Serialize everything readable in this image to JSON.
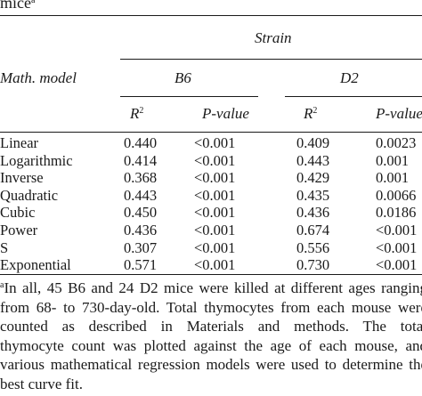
{
  "caption": {
    "text": "mice",
    "marker": "a"
  },
  "header": {
    "group_label": "Strain",
    "model_label": "Math. model",
    "strains": [
      "B6",
      "D2"
    ],
    "r2_label": "R",
    "r2_exponent": "2",
    "p_label": "P-value"
  },
  "rows": [
    {
      "model": "Linear",
      "b6_r2": "0.440",
      "b6_p": "<0.001",
      "d2_r2": "0.409",
      "d2_p": "0.0023"
    },
    {
      "model": "Logarithmic",
      "b6_r2": "0.414",
      "b6_p": "<0.001",
      "d2_r2": "0.443",
      "d2_p": "0.001"
    },
    {
      "model": "Inverse",
      "b6_r2": "0.368",
      "b6_p": "<0.001",
      "d2_r2": "0.429",
      "d2_p": "0.001"
    },
    {
      "model": "Quadratic",
      "b6_r2": "0.443",
      "b6_p": "<0.001",
      "d2_r2": "0.435",
      "d2_p": "0.0066"
    },
    {
      "model": "Cubic",
      "b6_r2": "0.450",
      "b6_p": "<0.001",
      "d2_r2": "0.436",
      "d2_p": "0.0186"
    },
    {
      "model": "Power",
      "b6_r2": "0.436",
      "b6_p": "<0.001",
      "d2_r2": "0.674",
      "d2_p": "<0.001"
    },
    {
      "model": "S",
      "b6_r2": "0.307",
      "b6_p": "<0.001",
      "d2_r2": "0.556",
      "d2_p": "<0.001"
    },
    {
      "model": "Exponential",
      "b6_r2": "0.571",
      "b6_p": "<0.001",
      "d2_r2": "0.730",
      "d2_p": "<0.001"
    }
  ],
  "footnote": {
    "marker": "a",
    "lines": [
      "In all, 45 B6 and 24 D2 mice were killed at different ages ranging",
      "from 68- to 730-day-old. Total thymocytes from each mouse were",
      "counted as described in Materials and methods. The total",
      "thymocyte count was plotted against the age of each mouse, and",
      "various mathematical regression models were used to determine the",
      "best curve fit."
    ]
  }
}
